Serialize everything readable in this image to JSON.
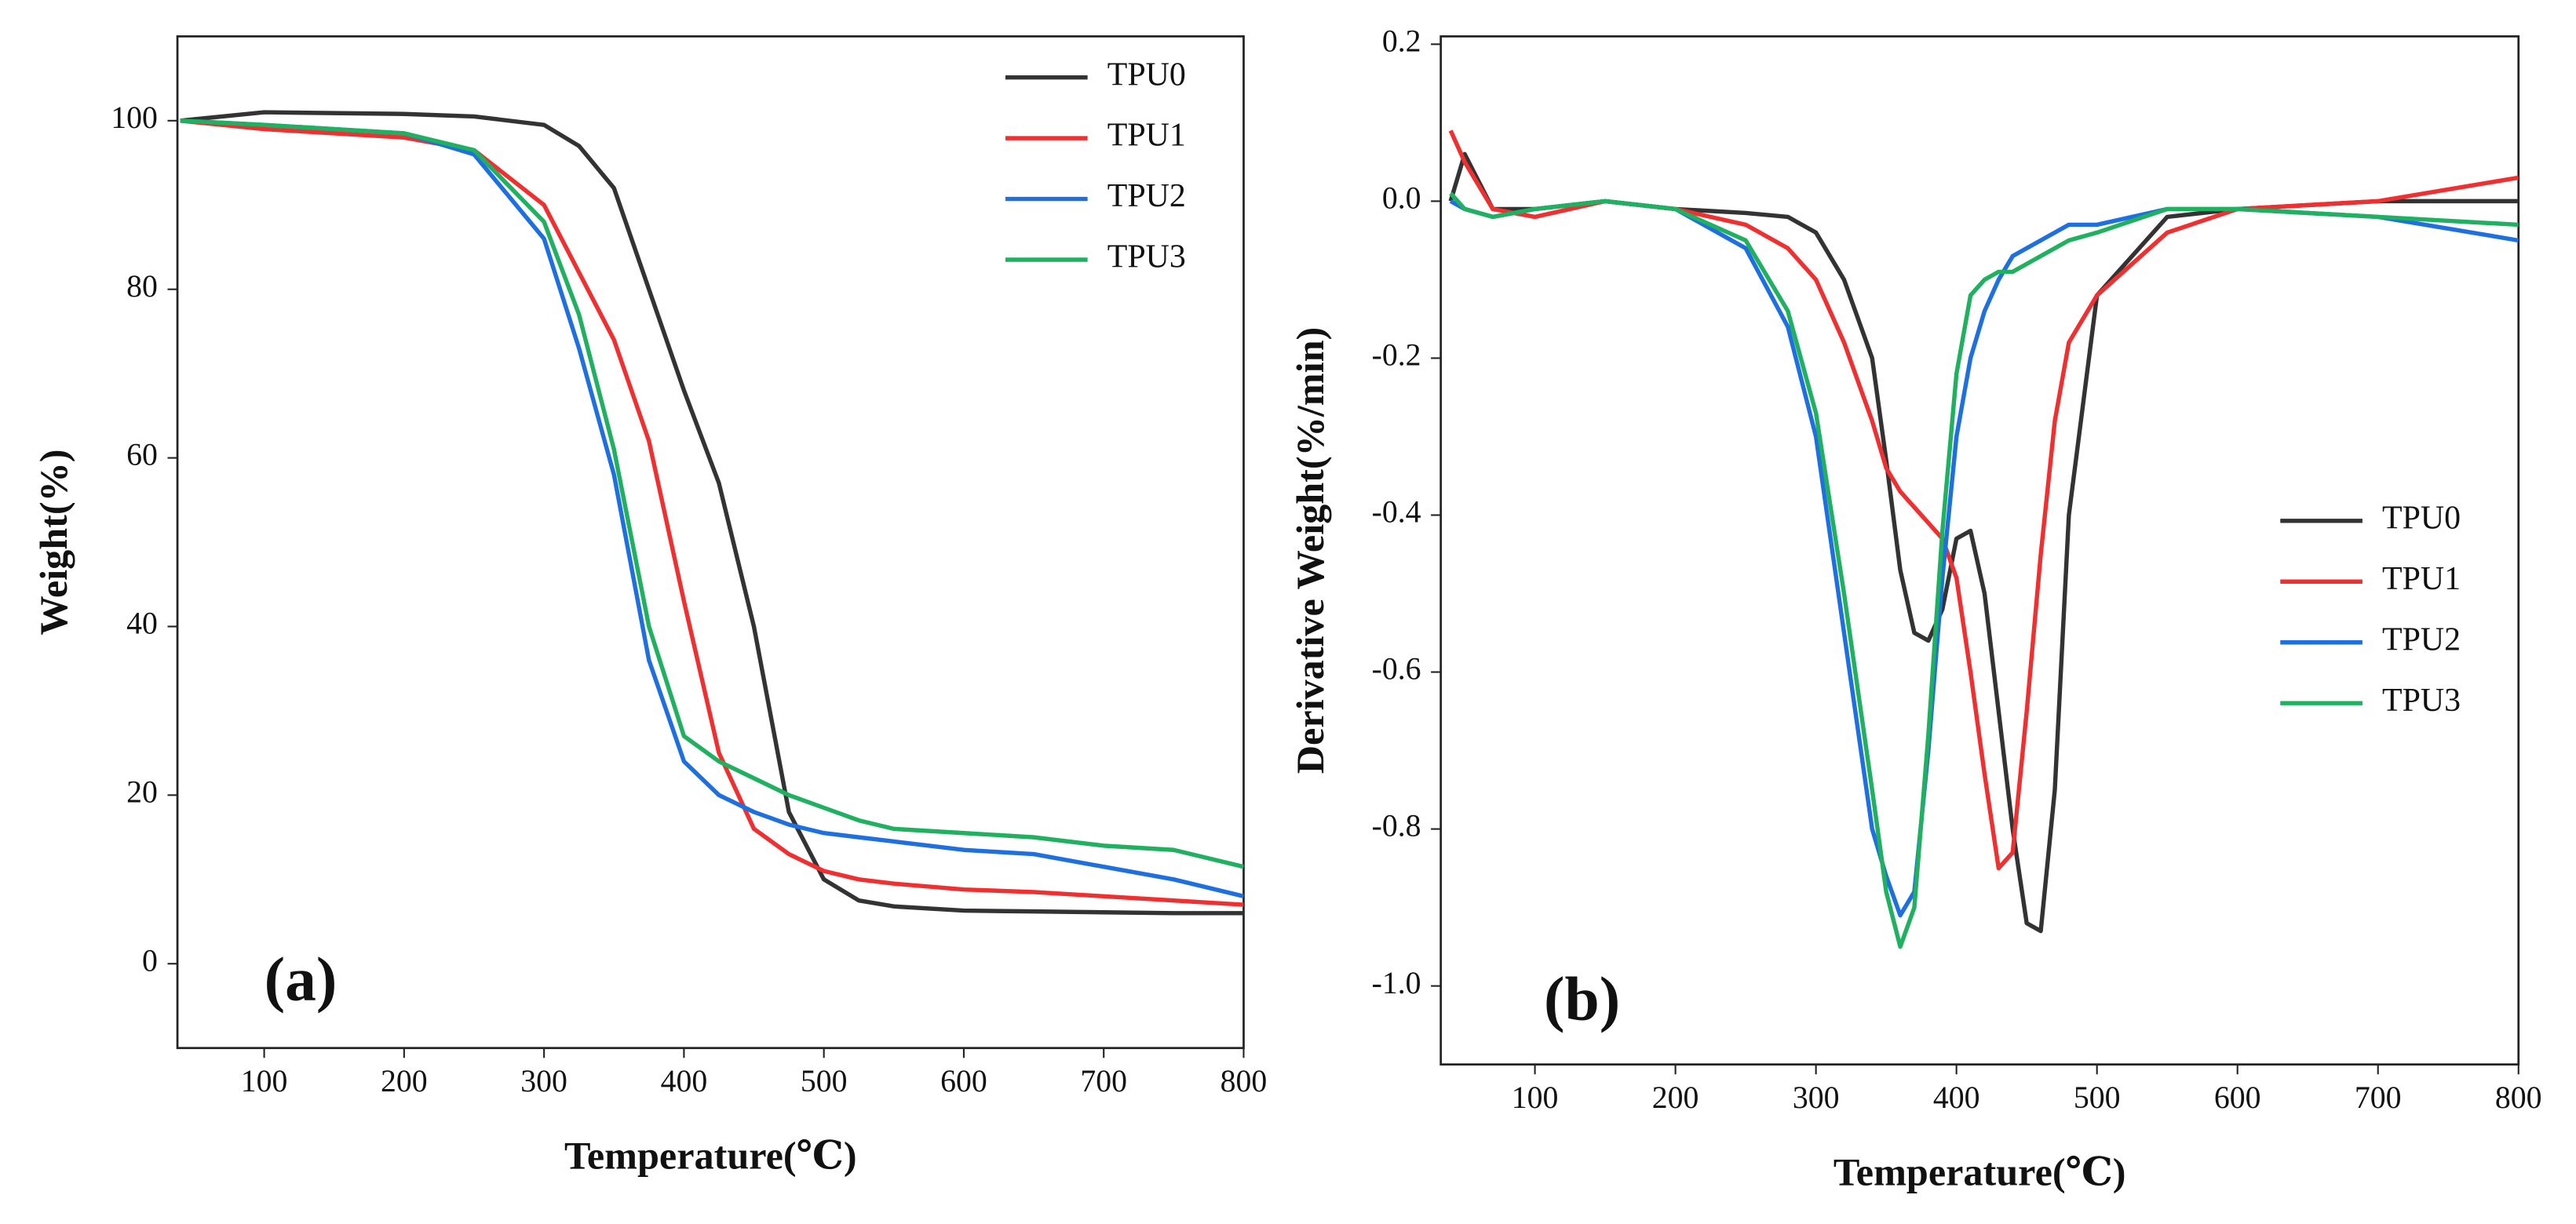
{
  "chart_data": [
    {
      "type": "line",
      "xlabel": "Temperature(℃)",
      "ylabel": "Weight(%)",
      "annotation": "(a)",
      "legend": "upper right",
      "xlim": [
        38,
        800
      ],
      "xticks": [
        100,
        200,
        300,
        400,
        500,
        600,
        700,
        800
      ],
      "ylim": [
        -10,
        110
      ],
      "yticks": [
        0,
        20,
        40,
        60,
        80,
        100
      ],
      "x": [
        40,
        100,
        200,
        250,
        300,
        325,
        350,
        375,
        400,
        425,
        450,
        475,
        500,
        525,
        550,
        600,
        650,
        700,
        750,
        800
      ],
      "series": [
        {
          "name": "TPU0",
          "color": "#333333",
          "values": [
            100,
            101,
            100.8,
            100.5,
            99.5,
            97,
            92,
            80,
            68,
            57,
            40,
            18,
            10,
            7.5,
            6.8,
            6.3,
            6.2,
            6.1,
            6.0,
            6.0
          ]
        },
        {
          "name": "TPU1",
          "color": "#f03030",
          "values": [
            100,
            99,
            98,
            96.5,
            90,
            82,
            74,
            62,
            43,
            25,
            16,
            13,
            11,
            10,
            9.5,
            8.8,
            8.5,
            8,
            7.5,
            7
          ]
        },
        {
          "name": "TPU2",
          "color": "#1e6fe0",
          "values": [
            100,
            99.5,
            98.5,
            96,
            86,
            73,
            58,
            36,
            24,
            20,
            18,
            16.5,
            15.5,
            15,
            14.5,
            13.5,
            13,
            11.5,
            10,
            8
          ]
        },
        {
          "name": "TPU3",
          "color": "#1fb060",
          "values": [
            100,
            99.5,
            98.5,
            96.5,
            88,
            77,
            61,
            40,
            27,
            24,
            22,
            20,
            18.5,
            17,
            16,
            15.5,
            15,
            14,
            13.5,
            11.5
          ]
        }
      ]
    },
    {
      "type": "line",
      "xlabel": "Temperature(℃)",
      "ylabel": "Derivative Weight(%/min)",
      "annotation": "(b)",
      "legend": "lower right",
      "xlim": [
        33,
        800
      ],
      "xticks": [
        100,
        200,
        300,
        400,
        500,
        600,
        700,
        800
      ],
      "ylim": [
        -1.1,
        0.21
      ],
      "yticks": [
        0.2,
        {
          "value": 0,
          "label": "0.0"
        },
        -0.2,
        -0.4,
        -0.6,
        -0.8,
        {
          "value": -1,
          "label": "-1.0"
        }
      ],
      "x": [
        40,
        50,
        70,
        100,
        150,
        200,
        250,
        280,
        300,
        320,
        340,
        350,
        360,
        370,
        380,
        390,
        400,
        410,
        420,
        430,
        440,
        450,
        460,
        470,
        480,
        500,
        550,
        600,
        700,
        800
      ],
      "series": [
        {
          "name": "TPU0",
          "color": "#333333",
          "values": [
            0.0,
            0.06,
            -0.01,
            -0.01,
            0,
            -0.01,
            -0.015,
            -0.02,
            -0.04,
            -0.1,
            -0.2,
            -0.33,
            -0.47,
            -0.55,
            -0.56,
            -0.52,
            -0.43,
            -0.42,
            -0.5,
            -0.65,
            -0.8,
            -0.92,
            -0.93,
            -0.75,
            -0.4,
            -0.12,
            -0.02,
            -0.01,
            0,
            0
          ]
        },
        {
          "name": "TPU1",
          "color": "#f03030",
          "values": [
            0.09,
            0.05,
            -0.01,
            -0.02,
            0,
            -0.01,
            -0.03,
            -0.06,
            -0.1,
            -0.18,
            -0.28,
            -0.34,
            -0.37,
            -0.39,
            -0.41,
            -0.43,
            -0.48,
            -0.6,
            -0.73,
            -0.85,
            -0.83,
            -0.65,
            -0.45,
            -0.28,
            -0.18,
            -0.12,
            -0.04,
            -0.01,
            0,
            0.03
          ]
        },
        {
          "name": "TPU2",
          "color": "#1e6fe0",
          "values": [
            0.0,
            -0.01,
            -0.02,
            -0.01,
            0,
            -0.01,
            -0.06,
            -0.16,
            -0.3,
            -0.55,
            -0.8,
            -0.86,
            -0.91,
            -0.88,
            -0.7,
            -0.48,
            -0.3,
            -0.2,
            -0.14,
            -0.1,
            -0.07,
            -0.06,
            -0.05,
            -0.04,
            -0.03,
            -0.03,
            -0.01,
            -0.01,
            -0.02,
            -0.05
          ]
        },
        {
          "name": "TPU3",
          "color": "#1fb060",
          "values": [
            0.01,
            -0.01,
            -0.02,
            -0.01,
            0,
            -0.01,
            -0.05,
            -0.14,
            -0.27,
            -0.5,
            -0.75,
            -0.88,
            -0.95,
            -0.9,
            -0.68,
            -0.42,
            -0.22,
            -0.12,
            -0.1,
            -0.09,
            -0.09,
            -0.08,
            -0.07,
            -0.06,
            -0.05,
            -0.04,
            -0.01,
            -0.01,
            -0.02,
            -0.03
          ]
        }
      ]
    }
  ]
}
